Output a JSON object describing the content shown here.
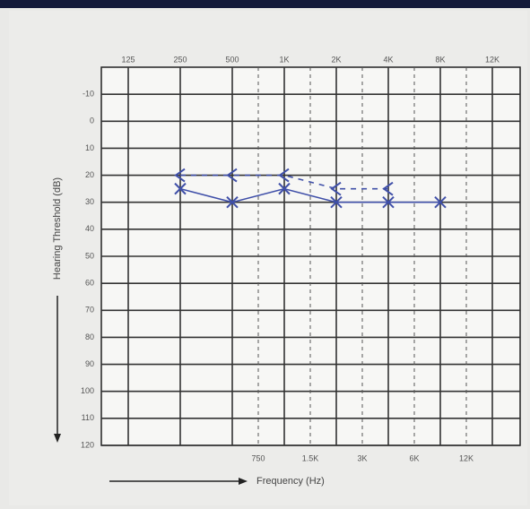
{
  "chart_data": {
    "type": "line",
    "x_axis_label": "Frequency (Hz)",
    "y_axis_label": "Hearing Threshold (dB)",
    "categories": [
      "125",
      "250",
      "500",
      "1K",
      "2K",
      "4K",
      "8K",
      "12K"
    ],
    "secondary_categories": [
      "750",
      "1.5K",
      "3K",
      "6K",
      "12K"
    ],
    "ylim": [
      -20,
      120
    ],
    "inverted_y": true,
    "yticks": [
      -10,
      0,
      10,
      20,
      30,
      40,
      50,
      60,
      70,
      80,
      90,
      100,
      110,
      120
    ],
    "grid": true,
    "series": [
      {
        "color": "#3f4fa8",
        "marker": "x",
        "dashed": false,
        "values": [
          null,
          25,
          30,
          25,
          30,
          30,
          30,
          null
        ]
      },
      {
        "color": "#3f4fa8",
        "marker": "<",
        "dashed": true,
        "values": [
          null,
          20,
          20,
          20,
          25,
          25,
          null,
          null
        ]
      }
    ]
  }
}
